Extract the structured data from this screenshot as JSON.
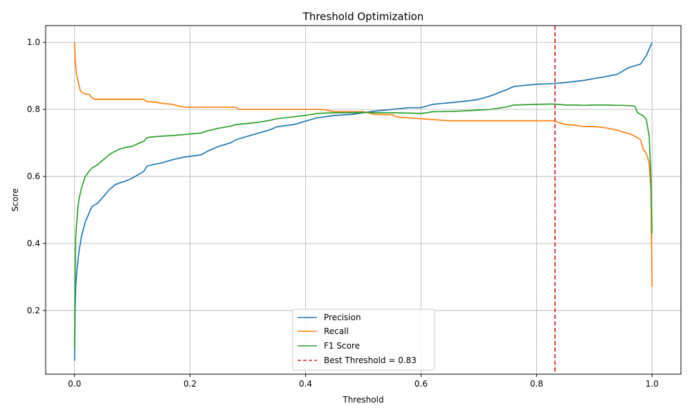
{
  "chart_data": {
    "type": "line",
    "title": "Threshold Optimization",
    "xlabel": "Threshold",
    "ylabel": "Score",
    "xlim": [
      -0.05,
      1.05
    ],
    "ylim": [
      0.01,
      1.05
    ],
    "xticks": [
      0.0,
      0.2,
      0.4,
      0.6,
      0.8,
      1.0
    ],
    "xtick_labels": [
      "0.0",
      "0.2",
      "0.4",
      "0.6",
      "0.8",
      "1.0"
    ],
    "yticks": [
      0.2,
      0.4,
      0.6,
      0.8,
      1.0
    ],
    "ytick_labels": [
      "0.2",
      "0.4",
      "0.6",
      "0.8",
      "1.0"
    ],
    "grid": true,
    "legend_position": "bottom-center",
    "series": [
      {
        "name": "Precision",
        "color": "#1f77b4",
        "x": [
          0.0,
          0.001,
          0.002,
          0.004,
          0.006,
          0.008,
          0.01,
          0.012,
          0.015,
          0.018,
          0.02,
          0.025,
          0.03,
          0.035,
          0.04,
          0.05,
          0.06,
          0.07,
          0.08,
          0.09,
          0.1,
          0.11,
          0.12,
          0.125,
          0.13,
          0.15,
          0.17,
          0.19,
          0.21,
          0.22,
          0.23,
          0.25,
          0.27,
          0.28,
          0.3,
          0.32,
          0.34,
          0.35,
          0.38,
          0.4,
          0.42,
          0.45,
          0.48,
          0.5,
          0.52,
          0.55,
          0.58,
          0.6,
          0.61,
          0.62,
          0.65,
          0.68,
          0.7,
          0.72,
          0.75,
          0.76,
          0.78,
          0.8,
          0.83,
          0.85,
          0.87,
          0.88,
          0.9,
          0.92,
          0.94,
          0.95,
          0.96,
          0.97,
          0.98,
          0.99,
          0.995,
          1.0
        ],
        "values": [
          0.05,
          0.2,
          0.27,
          0.32,
          0.35,
          0.38,
          0.4,
          0.42,
          0.44,
          0.46,
          0.47,
          0.49,
          0.51,
          0.515,
          0.52,
          0.54,
          0.56,
          0.575,
          0.582,
          0.587,
          0.595,
          0.605,
          0.615,
          0.63,
          0.633,
          0.64,
          0.65,
          0.658,
          0.662,
          0.665,
          0.675,
          0.69,
          0.7,
          0.71,
          0.72,
          0.73,
          0.74,
          0.748,
          0.755,
          0.765,
          0.775,
          0.782,
          0.785,
          0.79,
          0.795,
          0.8,
          0.805,
          0.805,
          0.81,
          0.815,
          0.82,
          0.825,
          0.83,
          0.84,
          0.86,
          0.868,
          0.872,
          0.875,
          0.877,
          0.88,
          0.884,
          0.886,
          0.892,
          0.898,
          0.905,
          0.915,
          0.925,
          0.93,
          0.935,
          0.96,
          0.98,
          1.0
        ]
      },
      {
        "name": "Recall",
        "color": "#ff7f0e",
        "x": [
          0.0,
          0.001,
          0.003,
          0.005,
          0.008,
          0.01,
          0.015,
          0.02,
          0.025,
          0.03,
          0.035,
          0.04,
          0.06,
          0.1,
          0.12,
          0.125,
          0.14,
          0.15,
          0.17,
          0.18,
          0.19,
          0.22,
          0.26,
          0.28,
          0.285,
          0.35,
          0.4,
          0.43,
          0.45,
          0.5,
          0.52,
          0.55,
          0.56,
          0.6,
          0.65,
          0.7,
          0.75,
          0.8,
          0.83,
          0.84,
          0.85,
          0.87,
          0.88,
          0.9,
          0.92,
          0.94,
          0.95,
          0.96,
          0.97,
          0.98,
          0.985,
          0.99,
          0.995,
          0.998,
          1.0
        ],
        "values": [
          1.0,
          0.95,
          0.91,
          0.89,
          0.87,
          0.855,
          0.848,
          0.845,
          0.845,
          0.835,
          0.83,
          0.83,
          0.83,
          0.83,
          0.83,
          0.823,
          0.822,
          0.818,
          0.815,
          0.81,
          0.807,
          0.806,
          0.806,
          0.806,
          0.8,
          0.8,
          0.8,
          0.8,
          0.793,
          0.793,
          0.785,
          0.784,
          0.777,
          0.772,
          0.766,
          0.766,
          0.766,
          0.766,
          0.766,
          0.76,
          0.755,
          0.752,
          0.749,
          0.749,
          0.745,
          0.738,
          0.732,
          0.728,
          0.72,
          0.71,
          0.68,
          0.67,
          0.64,
          0.56,
          0.27
        ]
      },
      {
        "name": "F1 Score",
        "color": "#2ca02c",
        "x": [
          0.0,
          0.001,
          0.002,
          0.004,
          0.006,
          0.008,
          0.01,
          0.012,
          0.015,
          0.018,
          0.02,
          0.025,
          0.03,
          0.035,
          0.04,
          0.05,
          0.06,
          0.07,
          0.08,
          0.09,
          0.1,
          0.11,
          0.12,
          0.125,
          0.13,
          0.15,
          0.17,
          0.19,
          0.21,
          0.22,
          0.23,
          0.25,
          0.27,
          0.28,
          0.3,
          0.32,
          0.34,
          0.35,
          0.38,
          0.4,
          0.42,
          0.45,
          0.48,
          0.5,
          0.52,
          0.55,
          0.58,
          0.6,
          0.61,
          0.62,
          0.65,
          0.68,
          0.7,
          0.72,
          0.75,
          0.76,
          0.78,
          0.8,
          0.83,
          0.85,
          0.87,
          0.88,
          0.9,
          0.92,
          0.94,
          0.95,
          0.96,
          0.97,
          0.975,
          0.98,
          0.985,
          0.99,
          0.995,
          0.998,
          1.0
        ],
        "values": [
          0.09,
          0.32,
          0.42,
          0.47,
          0.51,
          0.535,
          0.55,
          0.565,
          0.58,
          0.598,
          0.603,
          0.615,
          0.625,
          0.63,
          0.635,
          0.65,
          0.665,
          0.675,
          0.683,
          0.687,
          0.69,
          0.698,
          0.705,
          0.715,
          0.717,
          0.72,
          0.722,
          0.725,
          0.728,
          0.73,
          0.736,
          0.744,
          0.75,
          0.755,
          0.758,
          0.762,
          0.768,
          0.772,
          0.778,
          0.782,
          0.788,
          0.79,
          0.79,
          0.791,
          0.79,
          0.79,
          0.789,
          0.788,
          0.79,
          0.793,
          0.794,
          0.796,
          0.798,
          0.8,
          0.808,
          0.813,
          0.814,
          0.815,
          0.816,
          0.813,
          0.813,
          0.812,
          0.813,
          0.813,
          0.812,
          0.812,
          0.811,
          0.81,
          0.79,
          0.785,
          0.78,
          0.77,
          0.72,
          0.6,
          0.43
        ]
      }
    ],
    "reference_line": {
      "name": "Best Threshold = 0.83",
      "x": 0.832,
      "color": "#d62728",
      "style": "dashed"
    }
  }
}
